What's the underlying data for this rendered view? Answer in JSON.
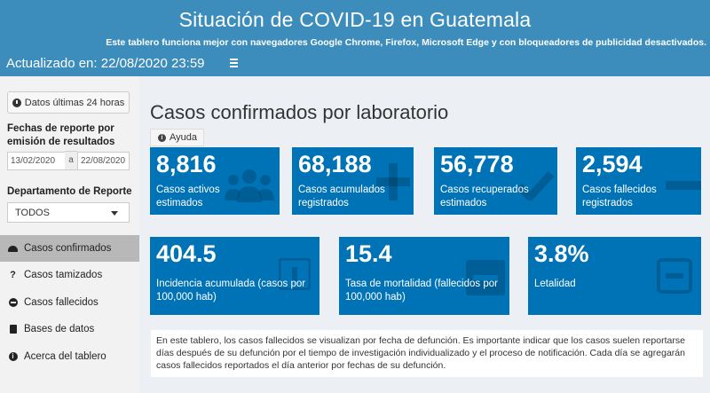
{
  "header": {
    "title": "Situación de COVID-19 en Guatemala",
    "subtitle": "Este tablero funciona mejor con navegadores Google Chrome, Firefox, Microsoft Edge y con bloqueadores de publicidad desactivados.",
    "updated": "Actualizado en: 22/08/2020 23:59"
  },
  "sidebar": {
    "last24_label": "Datos últimas 24 horas",
    "date_label": "Fechas de reporte por emisión de resultados",
    "date_from": "13/02/2020",
    "date_sep": "a",
    "date_to": "22/08/2020",
    "dept_label": "Departamento de Reporte",
    "dept_value": "TODOS",
    "nav": [
      {
        "label": "Casos confirmados",
        "icon": "gauge-icon"
      },
      {
        "label": "Casos tamizados",
        "icon": "question-icon"
      },
      {
        "label": "Casos fallecidos",
        "icon": "minus-circle-icon"
      },
      {
        "label": "Bases de datos",
        "icon": "file-icon"
      },
      {
        "label": "Acerca del tablero",
        "icon": "info-circle-icon"
      }
    ]
  },
  "main": {
    "title": "Casos confirmados por laboratorio",
    "help_label": "Ayuda",
    "boxes": [
      {
        "value": "8,816",
        "caption": "Casos activos estimados",
        "icon": "users-icon"
      },
      {
        "value": "68,188",
        "caption": "Casos acumulados registrados",
        "icon": "plus-icon"
      },
      {
        "value": "56,778",
        "caption": "Casos recuperados estimados",
        "icon": "check-icon"
      },
      {
        "value": "2,594",
        "caption": "Casos fallecidos registrados",
        "icon": "minus-icon"
      },
      {
        "value": "404.5",
        "caption": "Incidencia acumulada (casos por 100,000 hab)",
        "icon": "plus-square-icon"
      },
      {
        "value": "15.4",
        "caption": "Tasa de mortalidad (fallecidos por 100,000 hab)",
        "icon": "minus-square-icon"
      },
      {
        "value": "3.8%",
        "caption": "Letalidad",
        "icon": "minus-square-outline-icon"
      }
    ],
    "note": "En este tablero, los casos fallecidos se visualizan por fecha de defunción. Es importante indicar que los casos suelen reportarse días después de su defunción por el tiempo de investigación individualizado y el proceso de notificación. Cada día se agregarán casos fallecidos reportados el día anterior por fechas de su defunción."
  },
  "colors": {
    "header": "#3c8dbc",
    "box": "#0073b7",
    "sidebar": "#f2f2f2",
    "sidebar_active": "#b8b8b8",
    "content": "#ecf0f5"
  }
}
